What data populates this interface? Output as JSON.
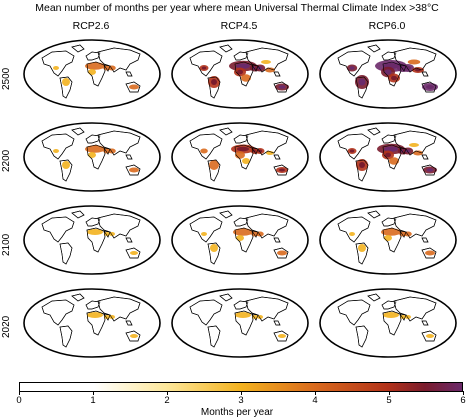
{
  "title": "Mean number of months per year where mean Universal Thermal Climate Index >38°C",
  "columns": [
    {
      "label": "RCP2.6"
    },
    {
      "label": "RCP4.5"
    },
    {
      "label": "RCP6.0"
    }
  ],
  "rows": [
    {
      "label": "2500"
    },
    {
      "label": "2200"
    },
    {
      "label": "2100"
    },
    {
      "label": "2020"
    }
  ],
  "colorbar": {
    "title": "Months per year",
    "ticks": [
      "0",
      "1",
      "2",
      "3",
      "4",
      "5",
      "6"
    ],
    "colors": [
      "#ffffff",
      "#fde79a",
      "#f3b21f",
      "#d96a1e",
      "#b2321a",
      "#7a1c2d",
      "#6b2a6a"
    ]
  },
  "intensity": {
    "rows": [
      "2500",
      "2200",
      "2100",
      "2020"
    ],
    "columns": [
      "RCP2.6",
      "RCP4.5",
      "RCP6.0"
    ],
    "levels": [
      [
        2,
        4,
        5
      ],
      [
        2,
        3,
        4
      ],
      [
        1,
        2,
        2
      ],
      [
        1,
        1,
        1
      ]
    ]
  },
  "map_colors": {
    "land": "#ffffff",
    "coast": "#000000",
    "levels": [
      "#fde79a",
      "#f3b21f",
      "#d96a1e",
      "#b2321a",
      "#7a1c2d",
      "#6b2a6a"
    ]
  }
}
